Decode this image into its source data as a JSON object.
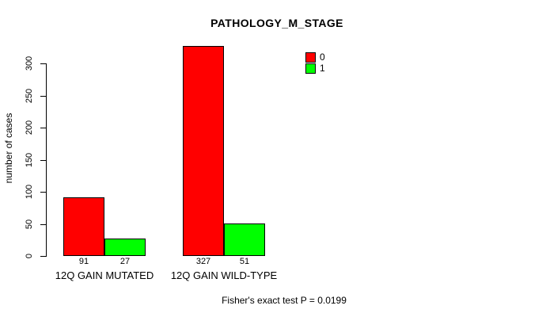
{
  "chart_data": {
    "type": "bar",
    "title": "PATHOLOGY_M_STAGE",
    "xlabel": "",
    "ylabel": "number of cases",
    "ylim": [
      0,
      300
    ],
    "yticks": [
      0,
      50,
      100,
      150,
      200,
      250,
      300
    ],
    "grid": false,
    "legend_position": "top-right",
    "categories": [
      "12Q GAIN MUTATED",
      "12Q GAIN WILD-TYPE"
    ],
    "series": [
      {
        "name": "0",
        "color": "#FF0000",
        "values": [
          91,
          327
        ]
      },
      {
        "name": "1",
        "color": "#00FF00",
        "values": [
          27,
          51
        ]
      }
    ],
    "bar_value_labels": [
      [
        "91",
        "327"
      ],
      [
        "27",
        "51"
      ]
    ],
    "annotation": "Fisher's exact test P = 0.0199"
  },
  "colors": {
    "series_0": "#FF0000",
    "series_1": "#00FF00",
    "axis": "#000000",
    "background": "#FFFFFF"
  }
}
